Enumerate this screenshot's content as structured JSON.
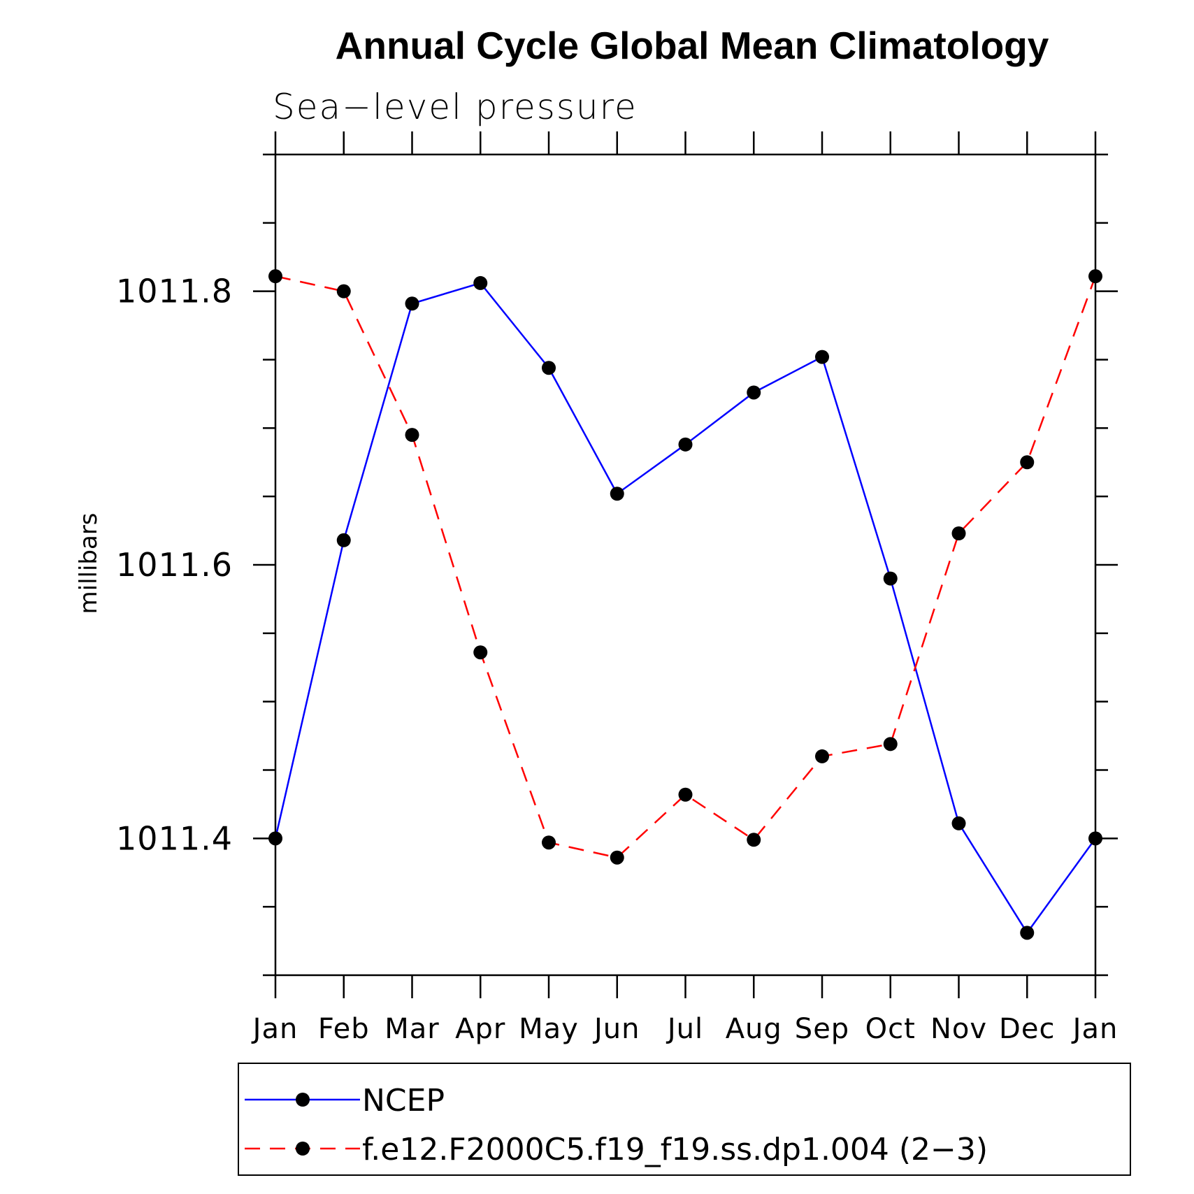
{
  "chart_data": {
    "type": "line",
    "title": "Annual Cycle Global Mean Climatology",
    "subtitle": "Sea−level pressure",
    "xlabel": "",
    "ylabel": "millibars",
    "categories": [
      "Jan",
      "Feb",
      "Mar",
      "Apr",
      "May",
      "Jun",
      "Jul",
      "Aug",
      "Sep",
      "Oct",
      "Nov",
      "Dec",
      "Jan"
    ],
    "ylim": [
      1011.3,
      1011.9
    ],
    "yticks_major": [
      1011.4,
      1011.6,
      1011.8
    ],
    "ytick_labels": [
      "1011.4",
      "1011.6",
      "1011.8"
    ],
    "yticks_minor_step": 0.05,
    "grid": false,
    "legend_position": "bottom",
    "series": [
      {
        "name": "NCEP",
        "color": "#0000ff",
        "line_style": "solid",
        "marker": "filled-circle",
        "values": [
          1011.4,
          1011.618,
          1011.791,
          1011.806,
          1011.744,
          1011.652,
          1011.688,
          1011.726,
          1011.752,
          1011.59,
          1011.411,
          1011.331,
          1011.4
        ]
      },
      {
        "name": "f.e12.F2000C5.f19_f19.ss.dp1.004 (2−3)",
        "color": "#ff0000",
        "line_style": "dashed",
        "marker": "filled-circle",
        "values": [
          1011.811,
          1011.8,
          1011.695,
          1011.536,
          1011.397,
          1011.386,
          1011.432,
          1011.399,
          1011.46,
          1011.469,
          1011.623,
          1011.675,
          1011.811
        ]
      }
    ]
  }
}
